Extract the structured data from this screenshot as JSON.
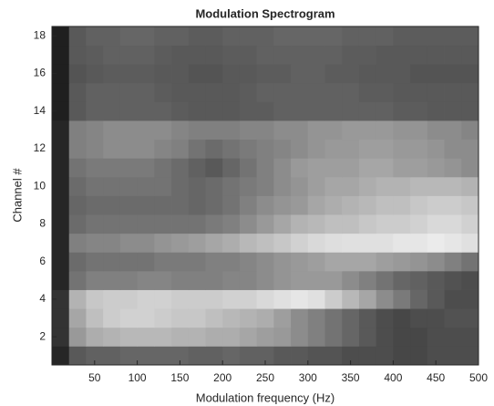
{
  "chart_data": {
    "type": "heatmap",
    "title": "Modulation Spectrogram",
    "x_label": "Modulation frequency (Hz)",
    "y_label": "Channel #",
    "colormap": "gray",
    "x": [
      10,
      30,
      50,
      70,
      90,
      110,
      130,
      150,
      170,
      190,
      210,
      230,
      250,
      270,
      290,
      310,
      330,
      350,
      370,
      390,
      410,
      430,
      450,
      470,
      490
    ],
    "y": [
      1,
      2,
      3,
      4,
      5,
      6,
      7,
      8,
      9,
      10,
      11,
      12,
      13,
      14,
      15,
      16,
      17,
      18
    ],
    "values": [
      [
        0.15,
        0.35,
        0.38,
        0.38,
        0.4,
        0.4,
        0.4,
        0.4,
        0.38,
        0.38,
        0.4,
        0.38,
        0.38,
        0.35,
        0.35,
        0.33,
        0.33,
        0.3,
        0.3,
        0.3,
        0.28,
        0.28,
        0.3,
        0.3,
        0.3
      ],
      [
        0.2,
        0.6,
        0.68,
        0.7,
        0.72,
        0.72,
        0.72,
        0.7,
        0.7,
        0.68,
        0.68,
        0.65,
        0.62,
        0.6,
        0.55,
        0.5,
        0.45,
        0.4,
        0.35,
        0.3,
        0.28,
        0.28,
        0.3,
        0.3,
        0.3
      ],
      [
        0.2,
        0.65,
        0.75,
        0.8,
        0.82,
        0.82,
        0.8,
        0.78,
        0.78,
        0.75,
        0.72,
        0.7,
        0.68,
        0.62,
        0.55,
        0.5,
        0.45,
        0.4,
        0.35,
        0.3,
        0.28,
        0.3,
        0.3,
        0.32,
        0.32
      ],
      [
        0.2,
        0.7,
        0.78,
        0.8,
        0.8,
        0.82,
        0.82,
        0.8,
        0.8,
        0.8,
        0.82,
        0.82,
        0.85,
        0.88,
        0.9,
        0.88,
        0.8,
        0.72,
        0.65,
        0.55,
        0.48,
        0.4,
        0.35,
        0.3,
        0.3
      ],
      [
        0.15,
        0.45,
        0.5,
        0.5,
        0.5,
        0.52,
        0.52,
        0.5,
        0.5,
        0.5,
        0.52,
        0.52,
        0.55,
        0.58,
        0.6,
        0.6,
        0.6,
        0.55,
        0.5,
        0.45,
        0.4,
        0.38,
        0.35,
        0.32,
        0.3
      ],
      [
        0.15,
        0.42,
        0.45,
        0.45,
        0.45,
        0.45,
        0.48,
        0.48,
        0.48,
        0.5,
        0.5,
        0.52,
        0.55,
        0.58,
        0.6,
        0.62,
        0.65,
        0.65,
        0.65,
        0.62,
        0.6,
        0.58,
        0.55,
        0.5,
        0.45
      ],
      [
        0.15,
        0.5,
        0.52,
        0.52,
        0.55,
        0.55,
        0.58,
        0.6,
        0.62,
        0.65,
        0.68,
        0.72,
        0.75,
        0.78,
        0.82,
        0.85,
        0.87,
        0.88,
        0.88,
        0.88,
        0.9,
        0.9,
        0.92,
        0.9,
        0.88
      ],
      [
        0.15,
        0.42,
        0.45,
        0.45,
        0.45,
        0.45,
        0.45,
        0.45,
        0.45,
        0.48,
        0.5,
        0.55,
        0.6,
        0.65,
        0.7,
        0.72,
        0.75,
        0.75,
        0.78,
        0.8,
        0.8,
        0.82,
        0.85,
        0.85,
        0.82
      ],
      [
        0.15,
        0.4,
        0.42,
        0.42,
        0.42,
        0.42,
        0.42,
        0.42,
        0.4,
        0.42,
        0.45,
        0.5,
        0.55,
        0.58,
        0.6,
        0.65,
        0.68,
        0.7,
        0.72,
        0.75,
        0.75,
        0.78,
        0.8,
        0.8,
        0.78
      ],
      [
        0.15,
        0.42,
        0.45,
        0.45,
        0.45,
        0.45,
        0.45,
        0.42,
        0.4,
        0.42,
        0.45,
        0.48,
        0.5,
        0.55,
        0.58,
        0.62,
        0.65,
        0.65,
        0.68,
        0.7,
        0.7,
        0.72,
        0.72,
        0.72,
        0.7
      ],
      [
        0.15,
        0.45,
        0.48,
        0.48,
        0.48,
        0.48,
        0.45,
        0.42,
        0.38,
        0.35,
        0.4,
        0.45,
        0.5,
        0.55,
        0.6,
        0.62,
        0.62,
        0.62,
        0.65,
        0.65,
        0.62,
        0.62,
        0.6,
        0.58,
        0.55
      ],
      [
        0.15,
        0.5,
        0.52,
        0.55,
        0.55,
        0.55,
        0.52,
        0.5,
        0.45,
        0.42,
        0.45,
        0.48,
        0.5,
        0.52,
        0.55,
        0.58,
        0.6,
        0.6,
        0.62,
        0.62,
        0.6,
        0.6,
        0.58,
        0.55,
        0.55
      ],
      [
        0.15,
        0.5,
        0.52,
        0.55,
        0.55,
        0.55,
        0.55,
        0.52,
        0.5,
        0.5,
        0.5,
        0.52,
        0.52,
        0.55,
        0.55,
        0.58,
        0.58,
        0.6,
        0.6,
        0.6,
        0.58,
        0.58,
        0.55,
        0.55,
        0.52
      ],
      [
        0.12,
        0.35,
        0.38,
        0.38,
        0.38,
        0.38,
        0.38,
        0.36,
        0.35,
        0.35,
        0.35,
        0.36,
        0.36,
        0.38,
        0.38,
        0.38,
        0.38,
        0.38,
        0.38,
        0.38,
        0.36,
        0.36,
        0.35,
        0.35,
        0.35
      ],
      [
        0.12,
        0.35,
        0.38,
        0.38,
        0.38,
        0.38,
        0.36,
        0.35,
        0.35,
        0.35,
        0.35,
        0.36,
        0.38,
        0.38,
        0.38,
        0.38,
        0.38,
        0.38,
        0.36,
        0.36,
        0.35,
        0.35,
        0.35,
        0.35,
        0.35
      ],
      [
        0.12,
        0.33,
        0.35,
        0.36,
        0.36,
        0.36,
        0.35,
        0.35,
        0.33,
        0.33,
        0.35,
        0.35,
        0.36,
        0.36,
        0.38,
        0.38,
        0.36,
        0.36,
        0.35,
        0.35,
        0.35,
        0.33,
        0.33,
        0.33,
        0.33
      ],
      [
        0.12,
        0.35,
        0.36,
        0.38,
        0.38,
        0.38,
        0.36,
        0.35,
        0.35,
        0.35,
        0.36,
        0.36,
        0.38,
        0.38,
        0.38,
        0.38,
        0.38,
        0.36,
        0.36,
        0.35,
        0.35,
        0.35,
        0.35,
        0.35,
        0.35
      ],
      [
        0.12,
        0.35,
        0.38,
        0.38,
        0.4,
        0.4,
        0.38,
        0.38,
        0.36,
        0.36,
        0.38,
        0.38,
        0.38,
        0.4,
        0.4,
        0.4,
        0.4,
        0.38,
        0.38,
        0.38,
        0.36,
        0.36,
        0.36,
        0.36,
        0.36
      ]
    ],
    "xlim": [
      0,
      500
    ],
    "ylim": [
      0.5,
      18.5
    ],
    "xticks": [
      50,
      100,
      150,
      200,
      250,
      300,
      350,
      400,
      450,
      500
    ],
    "yticks": [
      2,
      4,
      6,
      8,
      10,
      12,
      14,
      16,
      18
    ]
  }
}
